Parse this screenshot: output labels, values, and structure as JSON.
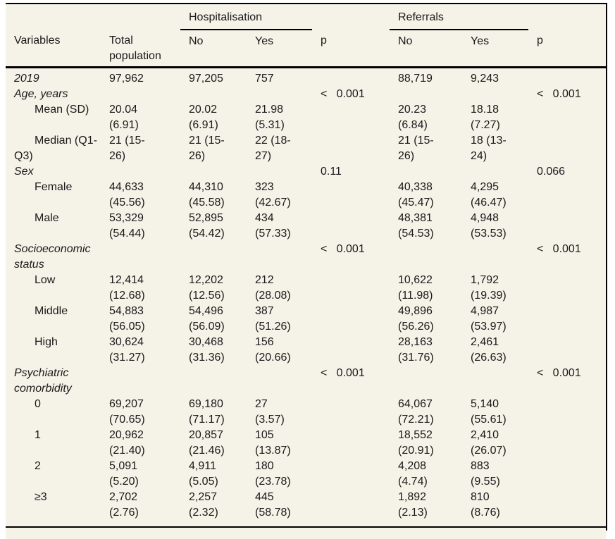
{
  "page": {
    "background": "#f5f2e8",
    "frame_color": "#000000",
    "text_color": "#1a1a1a"
  },
  "table": {
    "spanners": [
      {
        "label": "Hospitalisation"
      },
      {
        "label": "Referrals"
      }
    ],
    "columns": [
      "Variables",
      "Total\npopulation",
      "No",
      "Yes",
      "p",
      "No",
      "Yes",
      "p"
    ],
    "rows": [
      {
        "label": "2019",
        "style": "section",
        "cells": [
          "97,962",
          "97,205",
          "757",
          "",
          "88,719",
          "9,243",
          ""
        ]
      },
      {
        "label": "Age, years",
        "style": "section",
        "cells": [
          "",
          "",
          "",
          "<   0.001",
          "",
          "",
          "<   0.001"
        ]
      },
      {
        "label": "Mean (SD)",
        "style": "indent",
        "cells": [
          "20.04\n(6.91)",
          "20.02\n(6.91)",
          "21.98\n(5.31)",
          "",
          "20.23\n(6.84)",
          "18.18\n(7.27)",
          ""
        ]
      },
      {
        "label": "Median (Q1-\nQ3)",
        "style": "indent",
        "cells": [
          "21 (15-\n26)",
          "21 (15-\n26)",
          "22 (18-\n27)",
          "",
          "21 (15-\n26)",
          "18 (13-\n24)",
          ""
        ]
      },
      {
        "label": "Sex",
        "style": "section",
        "cells": [
          "",
          "",
          "",
          "0.11",
          "",
          "",
          "0.066"
        ]
      },
      {
        "label": "Female",
        "style": "indent",
        "cells": [
          "44,633\n(45.56)",
          "44,310\n(45.58)",
          "323\n(42.67)",
          "",
          "40,338\n(45.47)",
          "4,295\n(46.47)",
          ""
        ]
      },
      {
        "label": "Male",
        "style": "indent",
        "cells": [
          "53,329\n(54.44)",
          "52,895\n(54.42)",
          "434\n(57.33)",
          "",
          "48,381\n(54.53)",
          "4,948\n(53.53)",
          ""
        ]
      },
      {
        "label": "Socioeconomic\nstatus",
        "style": "section",
        "cells": [
          "",
          "",
          "",
          "<   0.001",
          "",
          "",
          "<   0.001"
        ]
      },
      {
        "label": "Low",
        "style": "indent",
        "cells": [
          "12,414\n(12.68)",
          "12,202\n(12.56)",
          "212\n(28.08)",
          "",
          "10,622\n(11.98)",
          "1,792\n(19.39)",
          ""
        ]
      },
      {
        "label": "Middle",
        "style": "indent",
        "cells": [
          "54,883\n(56.05)",
          "54,496\n(56.09)",
          "387\n(51.26)",
          "",
          "49,896\n(56.26)",
          "4,987\n(53.97)",
          ""
        ]
      },
      {
        "label": "High",
        "style": "indent",
        "cells": [
          "30,624\n(31.27)",
          "30,468\n(31.36)",
          "156\n(20.66)",
          "",
          "28,163\n(31.76)",
          "2,461\n(26.63)",
          ""
        ]
      },
      {
        "label": "Psychiatric\ncomorbidity",
        "style": "section",
        "cells": [
          "",
          "",
          "",
          "<   0.001",
          "",
          "",
          "<   0.001"
        ]
      },
      {
        "label": "0",
        "style": "indent",
        "cells": [
          "69,207\n(70.65)",
          "69,180\n(71.17)",
          "27\n(3.57)",
          "",
          "64,067\n(72.21)",
          "5,140\n(55.61)",
          ""
        ]
      },
      {
        "label": "1",
        "style": "indent",
        "cells": [
          "20,962\n(21.40)",
          "20,857\n(21.46)",
          "105\n(13.87)",
          "",
          "18,552\n(20.91)",
          "2,410\n(26.07)",
          ""
        ]
      },
      {
        "label": "2",
        "style": "indent",
        "cells": [
          "5,091\n(5.20)",
          "4,911\n(5.05)",
          "180\n(23.78)",
          "",
          "4,208\n(4.74)",
          "883\n(9.55)",
          ""
        ]
      },
      {
        "label": "≥3",
        "style": "indent",
        "cells": [
          "2,702\n(2.76)",
          "2,257\n(2.32)",
          "445\n(58.78)",
          "",
          "1,892\n(2.13)",
          "810\n(8.76)",
          ""
        ]
      }
    ]
  }
}
